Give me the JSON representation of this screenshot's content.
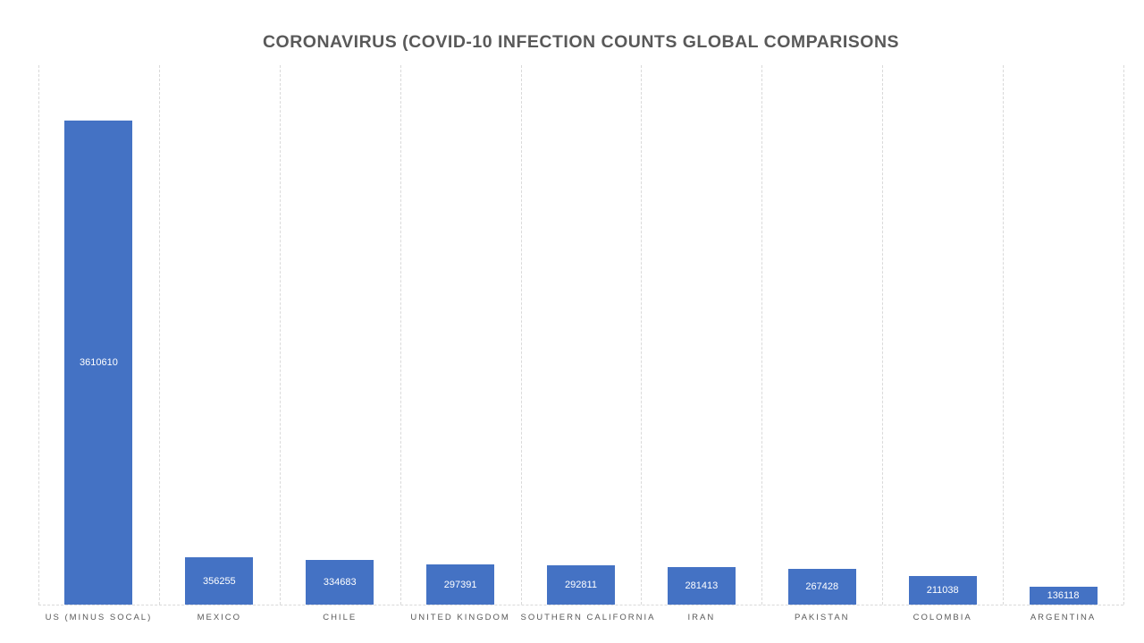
{
  "chart_data": {
    "type": "bar",
    "title": "CORONAVIRUS (COVID-10 INFECTION COUNTS GLOBAL COMPARISONS",
    "categories": [
      "US (MINUS SOCAL)",
      "MEXICO",
      "CHILE",
      "UNITED KINGDOM",
      "SOUTHERN CALIFORNIA",
      "IRAN",
      "PAKISTAN",
      "COLOMBIA",
      "ARGENTINA"
    ],
    "values": [
      3610610,
      356255,
      334683,
      297391,
      292811,
      281413,
      267428,
      211038,
      136118
    ],
    "xlabel": "",
    "ylabel": "",
    "ylim": [
      0,
      4030000
    ],
    "legend": "none",
    "grid": "vertical dashed gridlines at category boundaries, no horizontal gridlines, no y-axis tick labels",
    "data_labels": "inside center, white",
    "colors": {
      "bar": "#4472C4",
      "data_label": "#FFFFFF",
      "title": "#595959",
      "axis_labels": "#595959",
      "gridlines": "#D9D9D9",
      "background": "#FFFFFF"
    }
  }
}
